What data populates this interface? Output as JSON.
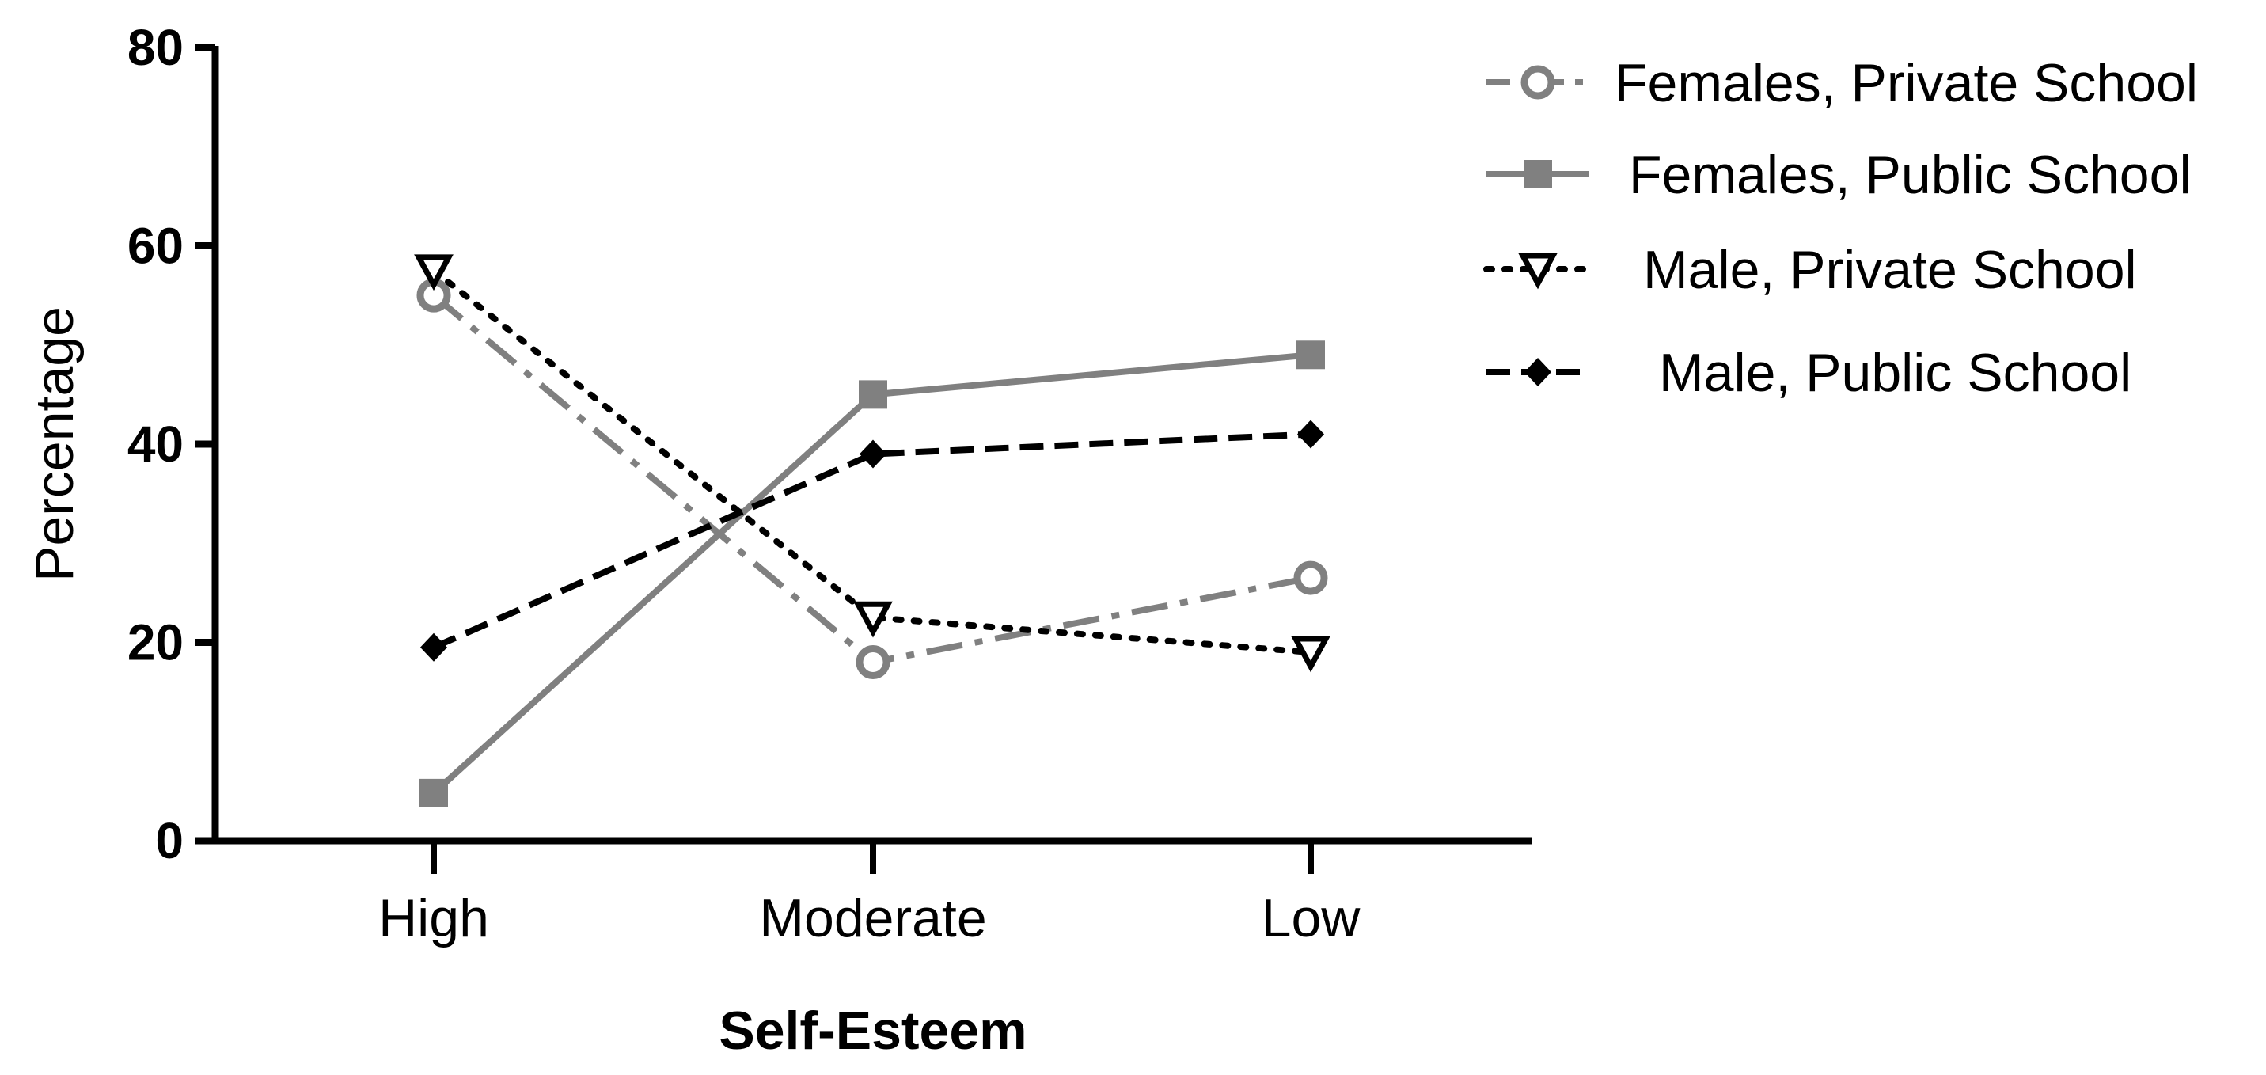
{
  "chart_data": {
    "type": "line",
    "title": "",
    "xlabel": "Self-Esteem",
    "ylabel": "Percentage",
    "categories": [
      "High",
      "Moderate",
      "Low"
    ],
    "ylim": [
      0,
      80
    ],
    "yticks": [
      0,
      20,
      40,
      60,
      80
    ],
    "ytick_labels": [
      "0",
      "20",
      "40",
      "60",
      "80"
    ],
    "legend_position": "top-right",
    "grid": false,
    "series": [
      {
        "name": "Females, Private School",
        "values": [
          55,
          18,
          26.5
        ],
        "color": "#808080",
        "dash": "dash-dot",
        "marker": "open-circle"
      },
      {
        "name": "Females, Public School",
        "values": [
          4.8,
          45,
          49
        ],
        "color": "#808080",
        "dash": "solid",
        "marker": "square"
      },
      {
        "name": "Male, Private School",
        "values": [
          57.5,
          22.5,
          19
        ],
        "color": "#000000",
        "dash": "dotted",
        "marker": "open-triangle-down"
      },
      {
        "name": "Male, Public School",
        "values": [
          19.5,
          39,
          41
        ],
        "color": "#000000",
        "dash": "dashed",
        "marker": "diamond"
      }
    ]
  }
}
